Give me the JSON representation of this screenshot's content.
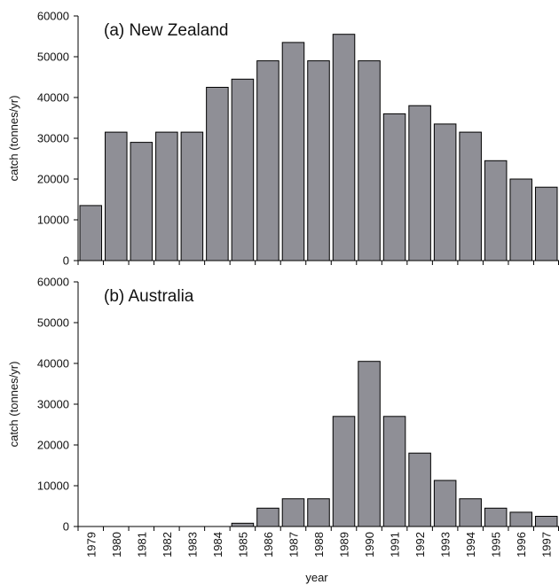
{
  "chart_data": [
    {
      "type": "bar",
      "title": "(a) New Zealand",
      "ylabel": "catch (tonnes/yr)",
      "xlabel": "",
      "categories": [
        "1979",
        "1980",
        "1981",
        "1982",
        "1983",
        "1984",
        "1985",
        "1986",
        "1987",
        "1988",
        "1989",
        "1990",
        "1991",
        "1992",
        "1993",
        "1994",
        "1995",
        "1996",
        "1997"
      ],
      "values": [
        13500,
        31500,
        29000,
        31500,
        31500,
        42500,
        44500,
        49000,
        53500,
        49000,
        55500,
        49000,
        36000,
        38000,
        33500,
        31500,
        24500,
        20000,
        18000
      ],
      "ylim": [
        0,
        60000
      ],
      "yticks": [
        "0",
        "10000",
        "20000",
        "30000",
        "40000",
        "50000",
        "60000"
      ],
      "show_x_tick_labels": false,
      "grid": false,
      "bar_color": "#8f8f96"
    },
    {
      "type": "bar",
      "title": "(b) Australia",
      "ylabel": "catch (tonnes/yr)",
      "xlabel": "year",
      "categories": [
        "1979",
        "1980",
        "1981",
        "1982",
        "1983",
        "1984",
        "1985",
        "1986",
        "1987",
        "1988",
        "1989",
        "1990",
        "1991",
        "1992",
        "1993",
        "1994",
        "1995",
        "1996",
        "1997"
      ],
      "values": [
        0,
        0,
        0,
        0,
        0,
        0,
        800,
        4500,
        6800,
        6800,
        27000,
        40500,
        27000,
        18000,
        11300,
        6800,
        4500,
        3500,
        2500
      ],
      "ylim": [
        0,
        60000
      ],
      "yticks": [
        "0",
        "10000",
        "20000",
        "30000",
        "40000",
        "50000",
        "60000"
      ],
      "show_x_tick_labels": true,
      "grid": false,
      "bar_color": "#8f8f96"
    }
  ]
}
